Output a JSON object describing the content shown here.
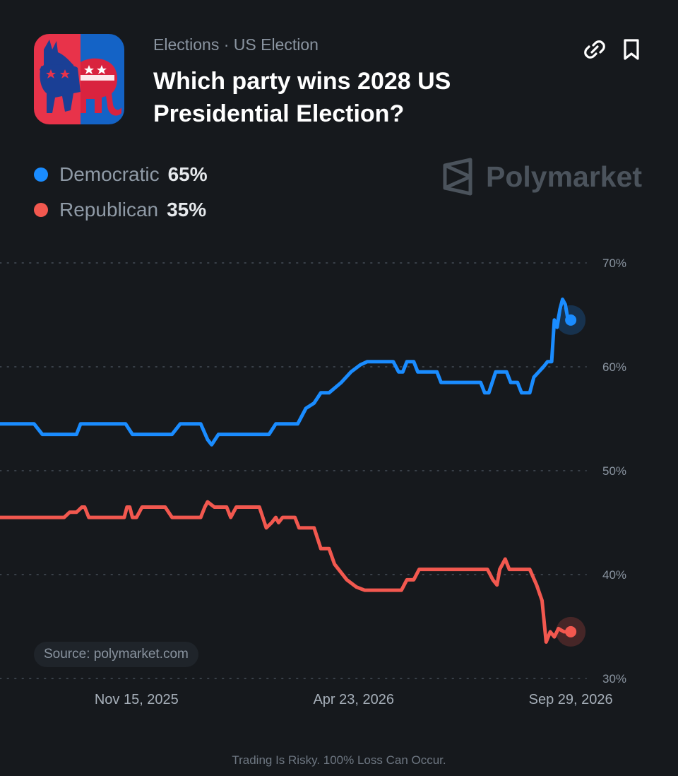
{
  "header": {
    "breadcrumb": "Elections · US Election",
    "title": "Which party wins 2028 US Presidential Election?"
  },
  "actions": {
    "link_icon": "link-icon",
    "bookmark_icon": "bookmark-icon"
  },
  "legend": [
    {
      "name": "Democratic",
      "value": "65%",
      "color": "#1a8cff"
    },
    {
      "name": "Republican",
      "value": "35%",
      "color": "#f2584f"
    }
  ],
  "brand": {
    "name": "Polymarket"
  },
  "source": "Source: polymarket.com",
  "footer": "Trading Is Risky. 100% Loss Can Occur.",
  "chart_data": {
    "type": "line",
    "title": "",
    "xlabel": "",
    "ylabel": "",
    "x_range": [
      "2025-08-07",
      "2026-10-01"
    ],
    "ylim": [
      30,
      70
    ],
    "yticks": [
      "70%",
      "60%",
      "50%",
      "40%",
      "30%"
    ],
    "xticks": [
      "Nov 15, 2025",
      "Apr 23, 2026",
      "Sep 29, 2026"
    ],
    "grid": "horizontal-dotted",
    "series": [
      {
        "name": "Democratic",
        "color": "#1a8cff",
        "points": [
          [
            "2025-08-07",
            54.5
          ],
          [
            "2025-09-01",
            54.5
          ],
          [
            "2025-09-04",
            54
          ],
          [
            "2025-09-07",
            53.5
          ],
          [
            "2025-10-02",
            53.5
          ],
          [
            "2025-10-05",
            54.5
          ],
          [
            "2025-11-07",
            54.5
          ],
          [
            "2025-11-12",
            53.5
          ],
          [
            "2025-12-11",
            53.5
          ],
          [
            "2025-12-17",
            54.5
          ],
          [
            "2026-01-01",
            54.5
          ],
          [
            "2026-01-06",
            53
          ],
          [
            "2026-01-09",
            52.5
          ],
          [
            "2026-01-14",
            53.5
          ],
          [
            "2026-02-20",
            53.5
          ],
          [
            "2026-02-25",
            54.5
          ],
          [
            "2026-03-13",
            54.5
          ],
          [
            "2026-03-19",
            56
          ],
          [
            "2026-03-25",
            56.5
          ],
          [
            "2026-03-30",
            57.5
          ],
          [
            "2026-04-05",
            57.5
          ],
          [
            "2026-04-14",
            58.5
          ],
          [
            "2026-04-21",
            59.5
          ],
          [
            "2026-04-28",
            60.2
          ],
          [
            "2026-05-03",
            60.5
          ],
          [
            "2026-05-22",
            60.5
          ],
          [
            "2026-05-26",
            59.5
          ],
          [
            "2026-05-29",
            59.5
          ],
          [
            "2026-06-01",
            60.5
          ],
          [
            "2026-06-06",
            60.5
          ],
          [
            "2026-06-09",
            59.5
          ],
          [
            "2026-06-23",
            59.5
          ],
          [
            "2026-06-26",
            58.5
          ],
          [
            "2026-07-25",
            58.5
          ],
          [
            "2026-07-28",
            57.5
          ],
          [
            "2026-07-31",
            57.5
          ],
          [
            "2026-08-05",
            59.5
          ],
          [
            "2026-08-13",
            59.5
          ],
          [
            "2026-08-16",
            58.5
          ],
          [
            "2026-08-21",
            58.5
          ],
          [
            "2026-08-24",
            57.5
          ],
          [
            "2026-08-30",
            57.5
          ],
          [
            "2026-09-02",
            59
          ],
          [
            "2026-09-09",
            60
          ],
          [
            "2026-09-12",
            60.5
          ],
          [
            "2026-09-15",
            60.5
          ],
          [
            "2026-09-17",
            64.5
          ],
          [
            "2026-09-19",
            63.8
          ],
          [
            "2026-09-21",
            65.5
          ],
          [
            "2026-09-23",
            66.5
          ],
          [
            "2026-09-25",
            66
          ],
          [
            "2026-09-27",
            64.5
          ],
          [
            "2026-09-29",
            64.5
          ]
        ]
      },
      {
        "name": "Republican",
        "color": "#f2584f",
        "points": [
          [
            "2025-08-07",
            45.5
          ],
          [
            "2025-09-23",
            45.5
          ],
          [
            "2025-09-27",
            46
          ],
          [
            "2025-10-02",
            46
          ],
          [
            "2025-10-06",
            46.5
          ],
          [
            "2025-10-08",
            46.5
          ],
          [
            "2025-10-11",
            45.5
          ],
          [
            "2025-11-06",
            45.5
          ],
          [
            "2025-11-08",
            46.5
          ],
          [
            "2025-11-10",
            46.5
          ],
          [
            "2025-11-12",
            45.5
          ],
          [
            "2025-11-15",
            45.5
          ],
          [
            "2025-11-19",
            46.5
          ],
          [
            "2025-12-06",
            46.5
          ],
          [
            "2025-12-11",
            45.5
          ],
          [
            "2026-01-01",
            45.5
          ],
          [
            "2026-01-04",
            46.5
          ],
          [
            "2026-01-06",
            47
          ],
          [
            "2026-01-11",
            46.5
          ],
          [
            "2026-01-20",
            46.5
          ],
          [
            "2026-01-23",
            45.5
          ],
          [
            "2026-01-27",
            46.5
          ],
          [
            "2026-02-13",
            46.5
          ],
          [
            "2026-02-18",
            44.5
          ],
          [
            "2026-02-22",
            45
          ],
          [
            "2026-02-25",
            45.5
          ],
          [
            "2026-02-27",
            45
          ],
          [
            "2026-03-02",
            45.5
          ],
          [
            "2026-03-11",
            45.5
          ],
          [
            "2026-03-14",
            44.5
          ],
          [
            "2026-03-25",
            44.5
          ],
          [
            "2026-03-30",
            42.5
          ],
          [
            "2026-04-05",
            42.5
          ],
          [
            "2026-04-09",
            41
          ],
          [
            "2026-04-18",
            39.5
          ],
          [
            "2026-04-25",
            38.8
          ],
          [
            "2026-05-01",
            38.5
          ],
          [
            "2026-05-28",
            38.5
          ],
          [
            "2026-06-01",
            39.5
          ],
          [
            "2026-06-06",
            39.5
          ],
          [
            "2026-06-10",
            40.5
          ],
          [
            "2026-07-30",
            40.5
          ],
          [
            "2026-08-03",
            39.5
          ],
          [
            "2026-08-06",
            39
          ],
          [
            "2026-08-08",
            40.5
          ],
          [
            "2026-08-12",
            41.5
          ],
          [
            "2026-08-15",
            40.5
          ],
          [
            "2026-08-30",
            40.5
          ],
          [
            "2026-09-04",
            39
          ],
          [
            "2026-09-08",
            37.5
          ],
          [
            "2026-09-11",
            33.5
          ],
          [
            "2026-09-14",
            34.5
          ],
          [
            "2026-09-17",
            34
          ],
          [
            "2026-09-20",
            34.8
          ],
          [
            "2026-09-24",
            34.5
          ],
          [
            "2026-09-29",
            34.5
          ]
        ]
      }
    ]
  }
}
